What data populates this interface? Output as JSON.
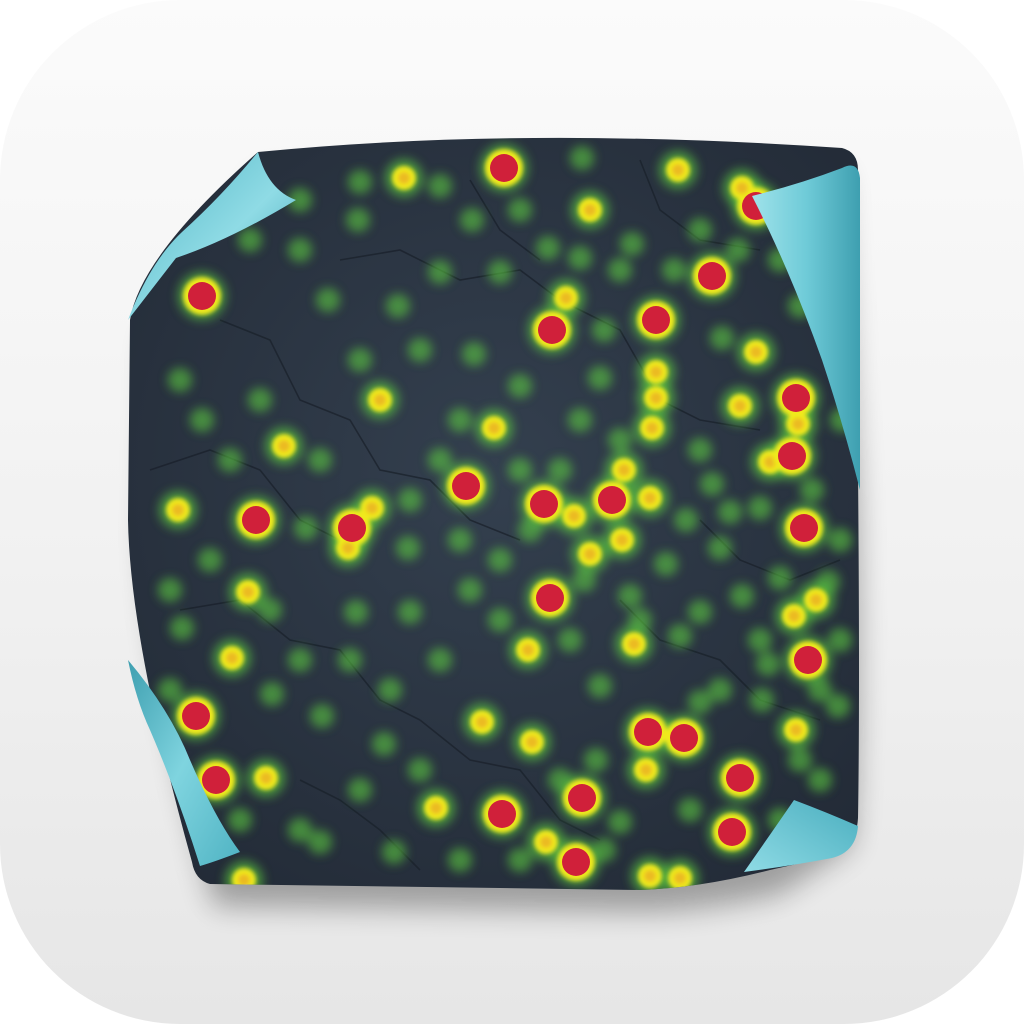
{
  "icon": {
    "name": "heatmap-app-icon",
    "background_color": "#f2f2f2",
    "page_color": "#2c3645",
    "curl_color": "#6fc9d6",
    "heat_colors": {
      "hot": "#d0203a",
      "warm": "#f0e91e",
      "cool": "#5fd640"
    }
  }
}
